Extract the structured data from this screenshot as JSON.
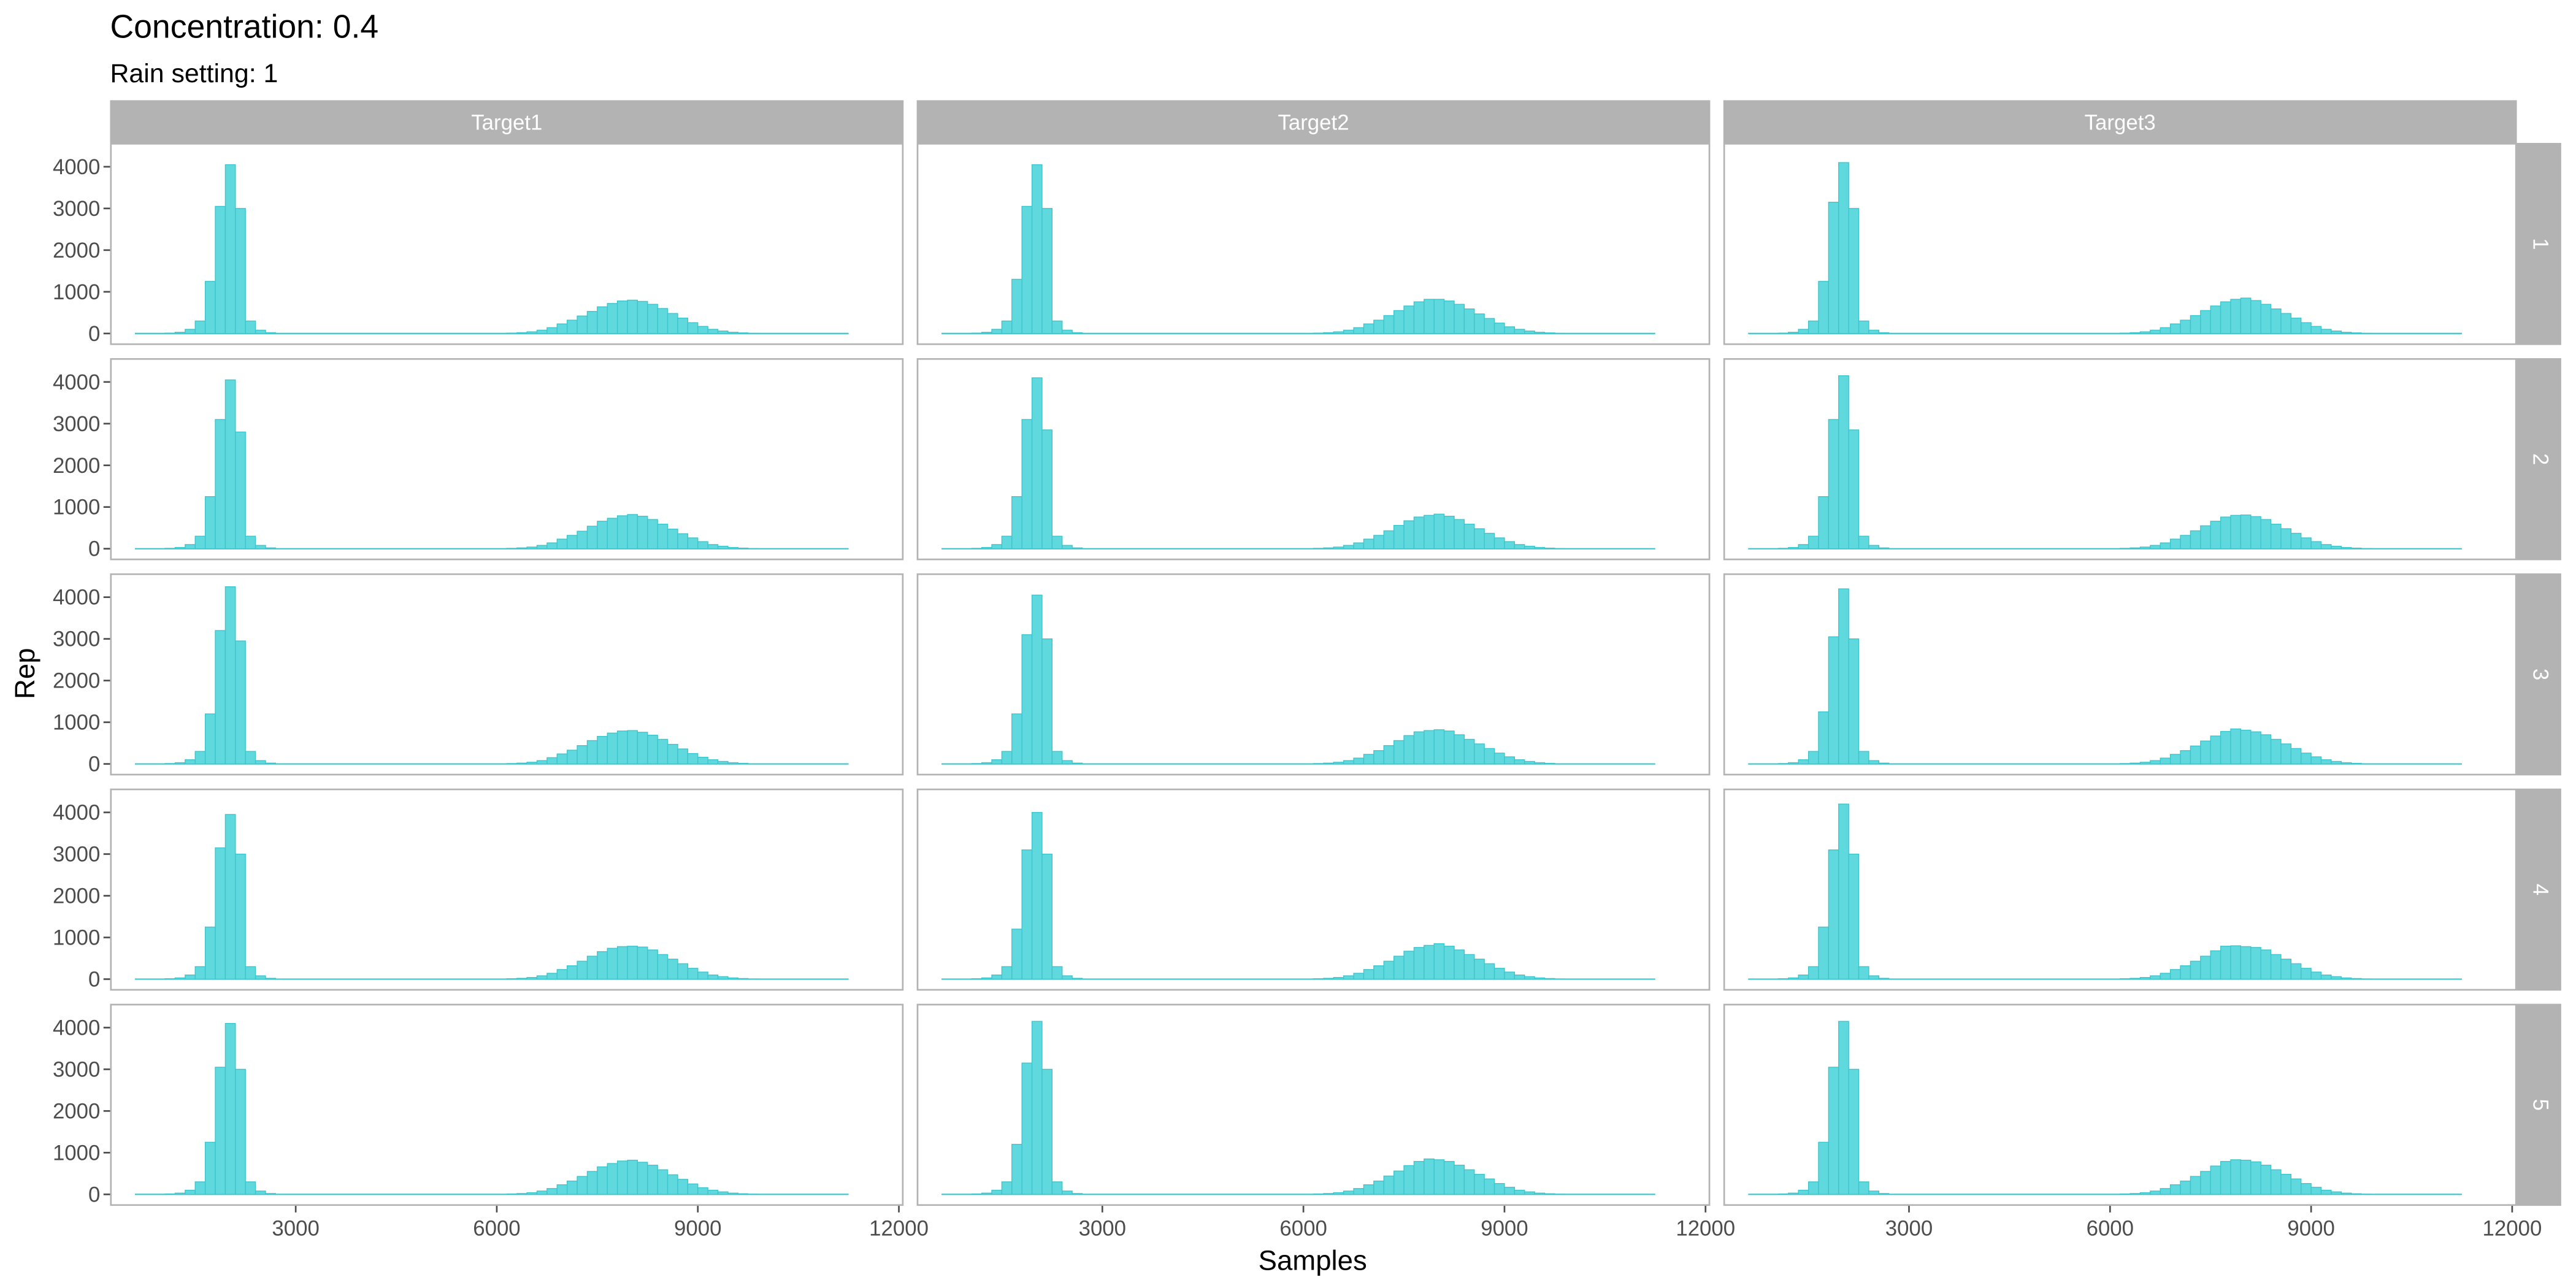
{
  "title": "Concentration: 0.4",
  "subtitle": "Rain setting: 1",
  "colors": {
    "bar_fill": "#5fd9de",
    "bar_stroke": "#3cc4cb",
    "strip_bg": "#b3b3b3",
    "panel_border": "#b3b3b3",
    "tick": "#4d4d4d"
  },
  "chart_data": {
    "type": "bar",
    "subtype": "faceted-histogram",
    "title": "Concentration: 0.4",
    "subtitle": "Rain setting: 1",
    "xlabel": "Samples",
    "ylabel": "Rep",
    "xlim": [
      0,
      12000
    ],
    "ylim": [
      0,
      4200
    ],
    "x_ticks": [
      "3000",
      "6000",
      "9000",
      "12000"
    ],
    "x_tick_values": [
      3000,
      6000,
      9000,
      12000
    ],
    "y_ticks": [
      "0",
      "1000",
      "2000",
      "3000",
      "4000"
    ],
    "y_tick_values": [
      0,
      1000,
      2000,
      3000,
      4000
    ],
    "grid": false,
    "bin_start": 600,
    "bin_width": 150,
    "columns": [
      "Target1",
      "Target2",
      "Target3"
    ],
    "rows": [
      "1",
      "2",
      "3",
      "4",
      "5"
    ],
    "panels": [
      [
        [
          0,
          0,
          0,
          10,
          30,
          100,
          300,
          1250,
          3050,
          4050,
          3000,
          300,
          80,
          20,
          0,
          0,
          0,
          0,
          0,
          0,
          0,
          0,
          0,
          0,
          0,
          0,
          0,
          0,
          0,
          0,
          0,
          0,
          0,
          0,
          0,
          0,
          0,
          10,
          20,
          40,
          80,
          140,
          230,
          320,
          420,
          530,
          640,
          720,
          780,
          800,
          770,
          700,
          600,
          480,
          370,
          260,
          170,
          100,
          60,
          30,
          15,
          5,
          0,
          0,
          0,
          0,
          0,
          0,
          0,
          0,
          0
        ],
        [
          0,
          0,
          0,
          10,
          30,
          100,
          300,
          1250,
          3100,
          4050,
          2800,
          300,
          80,
          20,
          0,
          0,
          0,
          0,
          0,
          0,
          0,
          0,
          0,
          0,
          0,
          0,
          0,
          0,
          0,
          0,
          0,
          0,
          0,
          0,
          0,
          0,
          0,
          10,
          20,
          40,
          80,
          140,
          230,
          320,
          420,
          540,
          660,
          730,
          790,
          820,
          780,
          700,
          590,
          470,
          360,
          260,
          170,
          100,
          60,
          30,
          15,
          5,
          0,
          0,
          0,
          0,
          0,
          0,
          0,
          0,
          0
        ],
        [
          0,
          0,
          0,
          10,
          30,
          100,
          300,
          1200,
          3200,
          4250,
          2950,
          300,
          80,
          20,
          0,
          0,
          0,
          0,
          0,
          0,
          0,
          0,
          0,
          0,
          0,
          0,
          0,
          0,
          0,
          0,
          0,
          0,
          0,
          0,
          0,
          0,
          0,
          10,
          20,
          40,
          80,
          150,
          240,
          330,
          440,
          560,
          660,
          740,
          790,
          800,
          760,
          690,
          590,
          470,
          360,
          250,
          160,
          100,
          60,
          30,
          15,
          5,
          0,
          0,
          0,
          0,
          0,
          0,
          0,
          0,
          0
        ],
        [
          0,
          0,
          0,
          10,
          30,
          100,
          300,
          1250,
          3150,
          3950,
          3000,
          300,
          80,
          20,
          0,
          0,
          0,
          0,
          0,
          0,
          0,
          0,
          0,
          0,
          0,
          0,
          0,
          0,
          0,
          0,
          0,
          0,
          0,
          0,
          0,
          0,
          0,
          10,
          20,
          40,
          80,
          140,
          230,
          320,
          430,
          550,
          660,
          740,
          780,
          790,
          770,
          700,
          590,
          480,
          370,
          260,
          170,
          100,
          60,
          30,
          15,
          5,
          0,
          0,
          0,
          0,
          0,
          0,
          0,
          0,
          0
        ],
        [
          0,
          0,
          0,
          10,
          30,
          100,
          300,
          1250,
          3050,
          4100,
          3000,
          300,
          80,
          20,
          0,
          0,
          0,
          0,
          0,
          0,
          0,
          0,
          0,
          0,
          0,
          0,
          0,
          0,
          0,
          0,
          0,
          0,
          0,
          0,
          0,
          0,
          0,
          10,
          20,
          40,
          80,
          140,
          230,
          320,
          430,
          550,
          660,
          740,
          800,
          820,
          770,
          700,
          590,
          470,
          360,
          250,
          160,
          100,
          60,
          30,
          15,
          5,
          0,
          0,
          0,
          0,
          0,
          0,
          0,
          0,
          0
        ]
      ],
      [
        [
          0,
          0,
          0,
          10,
          30,
          100,
          300,
          1300,
          3050,
          4050,
          3000,
          300,
          80,
          20,
          0,
          0,
          0,
          0,
          0,
          0,
          0,
          0,
          0,
          0,
          0,
          0,
          0,
          0,
          0,
          0,
          0,
          0,
          0,
          0,
          0,
          0,
          0,
          10,
          20,
          40,
          80,
          140,
          230,
          320,
          430,
          550,
          660,
          760,
          820,
          820,
          780,
          700,
          590,
          470,
          360,
          250,
          160,
          100,
          60,
          30,
          15,
          5,
          0,
          0,
          0,
          0,
          0,
          0,
          0,
          0,
          0
        ],
        [
          0,
          0,
          0,
          10,
          30,
          100,
          300,
          1250,
          3100,
          4100,
          2850,
          300,
          80,
          20,
          0,
          0,
          0,
          0,
          0,
          0,
          0,
          0,
          0,
          0,
          0,
          0,
          0,
          0,
          0,
          0,
          0,
          0,
          0,
          0,
          0,
          0,
          0,
          10,
          20,
          40,
          80,
          140,
          230,
          320,
          430,
          560,
          670,
          760,
          800,
          830,
          780,
          700,
          590,
          480,
          370,
          260,
          170,
          100,
          60,
          30,
          15,
          5,
          0,
          0,
          0,
          0,
          0,
          0,
          0,
          0,
          0
        ],
        [
          0,
          0,
          0,
          10,
          30,
          100,
          300,
          1200,
          3100,
          4050,
          3000,
          300,
          80,
          20,
          0,
          0,
          0,
          0,
          0,
          0,
          0,
          0,
          0,
          0,
          0,
          0,
          0,
          0,
          0,
          0,
          0,
          0,
          0,
          0,
          0,
          0,
          0,
          10,
          20,
          40,
          80,
          140,
          230,
          320,
          440,
          560,
          680,
          770,
          800,
          820,
          790,
          700,
          590,
          480,
          370,
          260,
          170,
          100,
          60,
          30,
          15,
          5,
          0,
          0,
          0,
          0,
          0,
          0,
          0,
          0,
          0
        ],
        [
          0,
          0,
          0,
          10,
          30,
          100,
          300,
          1200,
          3100,
          4000,
          3000,
          300,
          80,
          20,
          0,
          0,
          0,
          0,
          0,
          0,
          0,
          0,
          0,
          0,
          0,
          0,
          0,
          0,
          0,
          0,
          0,
          0,
          0,
          0,
          0,
          0,
          0,
          10,
          20,
          40,
          80,
          140,
          230,
          320,
          430,
          550,
          670,
          760,
          810,
          850,
          790,
          700,
          590,
          480,
          370,
          260,
          170,
          100,
          60,
          30,
          15,
          5,
          0,
          0,
          0,
          0,
          0,
          0,
          0,
          0,
          0
        ],
        [
          0,
          0,
          0,
          10,
          30,
          100,
          300,
          1200,
          3150,
          4150,
          3000,
          300,
          80,
          20,
          0,
          0,
          0,
          0,
          0,
          0,
          0,
          0,
          0,
          0,
          0,
          0,
          0,
          0,
          0,
          0,
          0,
          0,
          0,
          0,
          0,
          0,
          0,
          10,
          20,
          40,
          80,
          140,
          230,
          320,
          440,
          560,
          690,
          790,
          850,
          830,
          790,
          700,
          590,
          480,
          370,
          260,
          170,
          100,
          60,
          30,
          15,
          5,
          0,
          0,
          0,
          0,
          0,
          0,
          0,
          0,
          0
        ]
      ],
      [
        [
          0,
          0,
          0,
          10,
          30,
          100,
          300,
          1250,
          3150,
          4100,
          3000,
          300,
          80,
          20,
          0,
          0,
          0,
          0,
          0,
          0,
          0,
          0,
          0,
          0,
          0,
          0,
          0,
          0,
          0,
          0,
          0,
          0,
          0,
          0,
          0,
          0,
          0,
          10,
          20,
          40,
          80,
          140,
          230,
          320,
          430,
          550,
          660,
          760,
          820,
          850,
          790,
          700,
          590,
          480,
          370,
          260,
          170,
          100,
          60,
          30,
          15,
          5,
          0,
          0,
          0,
          0,
          0,
          0,
          0,
          0,
          0
        ],
        [
          0,
          0,
          0,
          10,
          30,
          100,
          300,
          1250,
          3100,
          4150,
          2850,
          300,
          80,
          20,
          0,
          0,
          0,
          0,
          0,
          0,
          0,
          0,
          0,
          0,
          0,
          0,
          0,
          0,
          0,
          0,
          0,
          0,
          0,
          0,
          0,
          0,
          0,
          10,
          20,
          40,
          80,
          140,
          230,
          320,
          430,
          550,
          660,
          760,
          800,
          810,
          770,
          700,
          590,
          480,
          370,
          260,
          170,
          100,
          60,
          30,
          15,
          5,
          0,
          0,
          0,
          0,
          0,
          0,
          0,
          0,
          0
        ],
        [
          0,
          0,
          0,
          10,
          30,
          100,
          300,
          1250,
          3050,
          4200,
          3000,
          300,
          80,
          20,
          0,
          0,
          0,
          0,
          0,
          0,
          0,
          0,
          0,
          0,
          0,
          0,
          0,
          0,
          0,
          0,
          0,
          0,
          0,
          0,
          0,
          0,
          0,
          10,
          20,
          40,
          80,
          140,
          230,
          320,
          430,
          550,
          670,
          780,
          840,
          810,
          770,
          700,
          590,
          480,
          370,
          260,
          170,
          100,
          60,
          30,
          15,
          5,
          0,
          0,
          0,
          0,
          0,
          0,
          0,
          0,
          0
        ],
        [
          0,
          0,
          0,
          10,
          30,
          100,
          300,
          1250,
          3100,
          4200,
          3000,
          300,
          80,
          20,
          0,
          0,
          0,
          0,
          0,
          0,
          0,
          0,
          0,
          0,
          0,
          0,
          0,
          0,
          0,
          0,
          0,
          0,
          0,
          0,
          0,
          0,
          0,
          10,
          20,
          40,
          80,
          140,
          230,
          320,
          430,
          550,
          680,
          790,
          800,
          780,
          760,
          700,
          590,
          480,
          370,
          260,
          170,
          100,
          60,
          30,
          15,
          5,
          0,
          0,
          0,
          0,
          0,
          0,
          0,
          0,
          0
        ],
        [
          0,
          0,
          0,
          10,
          30,
          100,
          300,
          1250,
          3050,
          4150,
          3000,
          300,
          80,
          20,
          0,
          0,
          0,
          0,
          0,
          0,
          0,
          0,
          0,
          0,
          0,
          0,
          0,
          0,
          0,
          0,
          0,
          0,
          0,
          0,
          0,
          0,
          0,
          10,
          20,
          40,
          80,
          140,
          230,
          320,
          430,
          550,
          680,
          790,
          830,
          820,
          780,
          700,
          590,
          480,
          370,
          260,
          170,
          100,
          60,
          30,
          15,
          5,
          0,
          0,
          0,
          0,
          0,
          0,
          0,
          0,
          0
        ]
      ]
    ]
  }
}
